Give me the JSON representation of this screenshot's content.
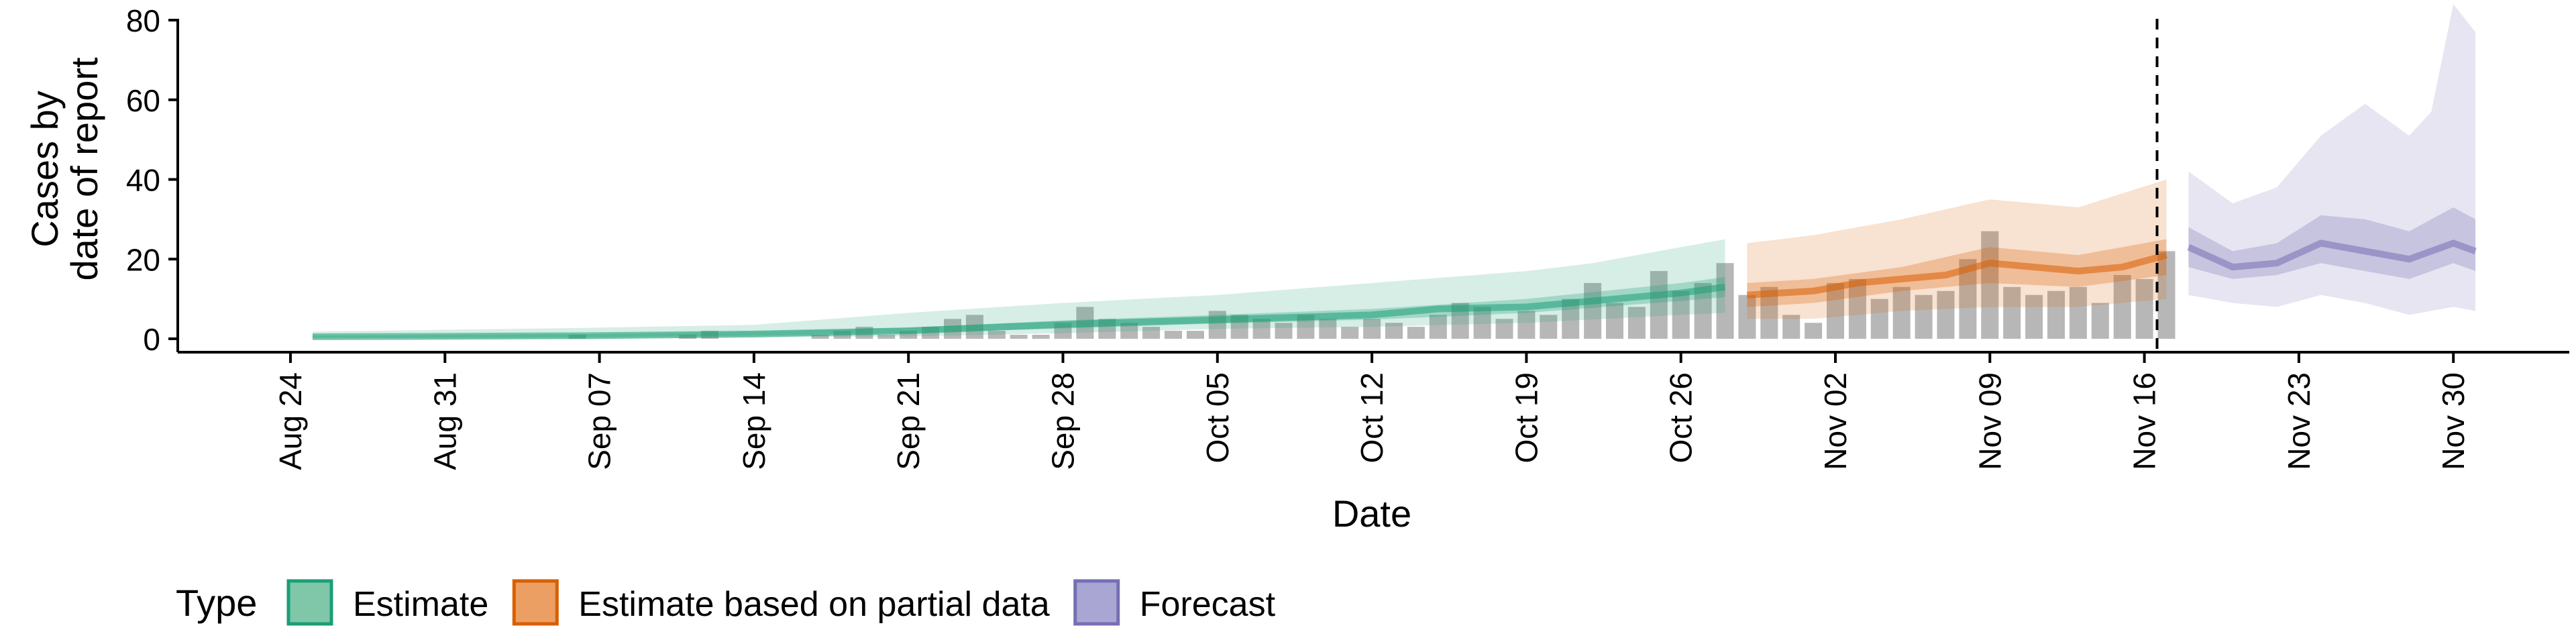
{
  "chart_data": {
    "type": "bar",
    "xlabel": "Date",
    "ylabel_lines": [
      "Cases by",
      "date of report"
    ],
    "ylim": [
      0,
      88
    ],
    "yticks": [
      0,
      20,
      40,
      60,
      80
    ],
    "xticks": [
      "Aug 24",
      "Aug 31",
      "Sep 07",
      "Sep 14",
      "Sep 21",
      "Sep 28",
      "Oct 05",
      "Oct 12",
      "Oct 19",
      "Oct 26",
      "Nov 02",
      "Nov 09",
      "Nov 16",
      "Nov 23",
      "Nov 30"
    ],
    "start_date": "2020-08-24",
    "forecast_date": "2020-11-17",
    "legend": {
      "title": "Type",
      "position": "bottom",
      "items": [
        {
          "label": "Estimate",
          "fill": "#7fc7a8",
          "stroke": "#1b9e77"
        },
        {
          "label": "Estimate based on partial data",
          "fill": "#ec9f62",
          "stroke": "#d95f02"
        },
        {
          "label": "Forecast",
          "fill": "#a9a6d3",
          "stroke": "#7570b3"
        }
      ]
    },
    "colors": {
      "estimate": "#1b9e77",
      "partial": "#d95f02",
      "forecast": "#7570b3",
      "bars": "#999999"
    },
    "reported_cases": [
      [
        "2020-08-24",
        0
      ],
      [
        "2020-08-25",
        0
      ],
      [
        "2020-08-26",
        0
      ],
      [
        "2020-08-27",
        0
      ],
      [
        "2020-08-28",
        0
      ],
      [
        "2020-08-29",
        0
      ],
      [
        "2020-08-30",
        0
      ],
      [
        "2020-08-31",
        0
      ],
      [
        "2020-09-01",
        0
      ],
      [
        "2020-09-02",
        0
      ],
      [
        "2020-09-03",
        0
      ],
      [
        "2020-09-04",
        0
      ],
      [
        "2020-09-05",
        0
      ],
      [
        "2020-09-06",
        1
      ],
      [
        "2020-09-07",
        0
      ],
      [
        "2020-09-08",
        0
      ],
      [
        "2020-09-09",
        0
      ],
      [
        "2020-09-10",
        0
      ],
      [
        "2020-09-11",
        1
      ],
      [
        "2020-09-12",
        2
      ],
      [
        "2020-09-13",
        0
      ],
      [
        "2020-09-14",
        0
      ],
      [
        "2020-09-15",
        0
      ],
      [
        "2020-09-16",
        0
      ],
      [
        "2020-09-17",
        1
      ],
      [
        "2020-09-18",
        2
      ],
      [
        "2020-09-19",
        3
      ],
      [
        "2020-09-20",
        1
      ],
      [
        "2020-09-21",
        2
      ],
      [
        "2020-09-22",
        3
      ],
      [
        "2020-09-23",
        5
      ],
      [
        "2020-09-24",
        6
      ],
      [
        "2020-09-25",
        2
      ],
      [
        "2020-09-26",
        1
      ],
      [
        "2020-09-27",
        1
      ],
      [
        "2020-09-28",
        4
      ],
      [
        "2020-09-29",
        8
      ],
      [
        "2020-09-30",
        5
      ],
      [
        "2020-10-01",
        4
      ],
      [
        "2020-10-02",
        3
      ],
      [
        "2020-10-03",
        2
      ],
      [
        "2020-10-04",
        2
      ],
      [
        "2020-10-05",
        7
      ],
      [
        "2020-10-06",
        6
      ],
      [
        "2020-10-07",
        5
      ],
      [
        "2020-10-08",
        4
      ],
      [
        "2020-10-09",
        6
      ],
      [
        "2020-10-10",
        5
      ],
      [
        "2020-10-11",
        3
      ],
      [
        "2020-10-12",
        5
      ],
      [
        "2020-10-13",
        4
      ],
      [
        "2020-10-14",
        3
      ],
      [
        "2020-10-15",
        6
      ],
      [
        "2020-10-16",
        9
      ],
      [
        "2020-10-17",
        8
      ],
      [
        "2020-10-18",
        5
      ],
      [
        "2020-10-19",
        7
      ],
      [
        "2020-10-20",
        6
      ],
      [
        "2020-10-21",
        10
      ],
      [
        "2020-10-22",
        14
      ],
      [
        "2020-10-23",
        9
      ],
      [
        "2020-10-24",
        8
      ],
      [
        "2020-10-25",
        17
      ],
      [
        "2020-10-26",
        12
      ],
      [
        "2020-10-27",
        14
      ],
      [
        "2020-10-28",
        19
      ],
      [
        "2020-10-29",
        11
      ],
      [
        "2020-10-30",
        13
      ],
      [
        "2020-10-31",
        6
      ],
      [
        "2020-11-01",
        4
      ],
      [
        "2020-11-02",
        14
      ],
      [
        "2020-11-03",
        15
      ],
      [
        "2020-11-04",
        10
      ],
      [
        "2020-11-05",
        13
      ],
      [
        "2020-11-06",
        11
      ],
      [
        "2020-11-07",
        12
      ],
      [
        "2020-11-08",
        20
      ],
      [
        "2020-11-09",
        27
      ],
      [
        "2020-11-10",
        13
      ],
      [
        "2020-11-11",
        11
      ],
      [
        "2020-11-12",
        12
      ],
      [
        "2020-11-13",
        13
      ],
      [
        "2020-11-14",
        9
      ],
      [
        "2020-11-15",
        16
      ],
      [
        "2020-11-16",
        15
      ],
      [
        "2020-11-17",
        22
      ]
    ],
    "estimate_median": [
      [
        "2020-08-25",
        0.5
      ],
      [
        "2020-08-31",
        0.6
      ],
      [
        "2020-09-07",
        0.8
      ],
      [
        "2020-09-14",
        1.2
      ],
      [
        "2020-09-21",
        2.0
      ],
      [
        "2020-09-28",
        3.6
      ],
      [
        "2020-10-05",
        4.8
      ],
      [
        "2020-10-12",
        6.0
      ],
      [
        "2020-10-15",
        7.5
      ],
      [
        "2020-10-19",
        8.0
      ],
      [
        "2020-10-22",
        9.5
      ],
      [
        "2020-10-26",
        11.5
      ],
      [
        "2020-10-28",
        13.0
      ]
    ],
    "estimate_band_50": {
      "lower": [
        [
          "2020-08-25",
          0.2
        ],
        [
          "2020-09-07",
          0.4
        ],
        [
          "2020-09-14",
          0.8
        ],
        [
          "2020-09-21",
          1.4
        ],
        [
          "2020-09-28",
          2.6
        ],
        [
          "2020-10-05",
          3.8
        ],
        [
          "2020-10-12",
          4.8
        ],
        [
          "2020-10-19",
          6.5
        ],
        [
          "2020-10-26",
          9.5
        ],
        [
          "2020-10-28",
          10.5
        ]
      ],
      "upper": [
        [
          "2020-08-25",
          0.8
        ],
        [
          "2020-09-07",
          1.2
        ],
        [
          "2020-09-14",
          1.8
        ],
        [
          "2020-09-21",
          2.8
        ],
        [
          "2020-09-28",
          4.6
        ],
        [
          "2020-10-05",
          6.0
        ],
        [
          "2020-10-12",
          7.5
        ],
        [
          "2020-10-19",
          10.0
        ],
        [
          "2020-10-26",
          14.0
        ],
        [
          "2020-10-28",
          15.5
        ]
      ]
    },
    "estimate_band_90": {
      "lower": [
        [
          "2020-08-25",
          0
        ],
        [
          "2020-09-07",
          0
        ],
        [
          "2020-09-14",
          0.3
        ],
        [
          "2020-09-21",
          0.6
        ],
        [
          "2020-09-28",
          1.4
        ],
        [
          "2020-10-05",
          2.5
        ],
        [
          "2020-10-12",
          3.0
        ],
        [
          "2020-10-19",
          4.0
        ],
        [
          "2020-10-26",
          6.0
        ],
        [
          "2020-10-28",
          6.5
        ]
      ],
      "upper": [
        [
          "2020-08-25",
          1.8
        ],
        [
          "2020-09-07",
          2.8
        ],
        [
          "2020-09-14",
          3.5
        ],
        [
          "2020-09-21",
          6.5
        ],
        [
          "2020-09-28",
          9.0
        ],
        [
          "2020-10-05",
          11.0
        ],
        [
          "2020-10-12",
          14.0
        ],
        [
          "2020-10-19",
          17.0
        ],
        [
          "2020-10-22",
          19.0
        ],
        [
          "2020-10-26",
          23.0
        ],
        [
          "2020-10-28",
          25.0
        ]
      ]
    },
    "partial_median": [
      [
        "2020-10-29",
        11
      ],
      [
        "2020-11-01",
        12
      ],
      [
        "2020-11-03",
        14
      ],
      [
        "2020-11-05",
        15
      ],
      [
        "2020-11-07",
        16
      ],
      [
        "2020-11-09",
        19
      ],
      [
        "2020-11-11",
        18
      ],
      [
        "2020-11-13",
        17
      ],
      [
        "2020-11-15",
        18
      ],
      [
        "2020-11-17",
        21
      ]
    ],
    "partial_band_50": {
      "lower": [
        [
          "2020-10-29",
          8
        ],
        [
          "2020-11-01",
          9
        ],
        [
          "2020-11-05",
          12
        ],
        [
          "2020-11-09",
          14
        ],
        [
          "2020-11-13",
          13
        ],
        [
          "2020-11-17",
          16
        ]
      ],
      "upper": [
        [
          "2020-10-29",
          14
        ],
        [
          "2020-11-01",
          15
        ],
        [
          "2020-11-05",
          18
        ],
        [
          "2020-11-09",
          23
        ],
        [
          "2020-11-13",
          21
        ],
        [
          "2020-11-17",
          25
        ]
      ]
    },
    "partial_band_90": {
      "lower": [
        [
          "2020-10-29",
          5
        ],
        [
          "2020-11-01",
          5
        ],
        [
          "2020-11-05",
          7
        ],
        [
          "2020-11-09",
          8
        ],
        [
          "2020-11-13",
          8
        ],
        [
          "2020-11-17",
          10
        ]
      ],
      "upper": [
        [
          "2020-10-29",
          24
        ],
        [
          "2020-11-01",
          26
        ],
        [
          "2020-11-05",
          30
        ],
        [
          "2020-11-09",
          35
        ],
        [
          "2020-11-13",
          33
        ],
        [
          "2020-11-17",
          40
        ]
      ]
    },
    "forecast_median": [
      [
        "2020-11-18",
        23
      ],
      [
        "2020-11-20",
        18
      ],
      [
        "2020-11-22",
        19
      ],
      [
        "2020-11-24",
        24
      ],
      [
        "2020-11-26",
        22
      ],
      [
        "2020-11-28",
        20
      ],
      [
        "2020-11-30",
        24
      ],
      [
        "2020-12-01",
        22
      ]
    ],
    "forecast_band_50": {
      "lower": [
        [
          "2020-11-18",
          18
        ],
        [
          "2020-11-20",
          15
        ],
        [
          "2020-11-22",
          16
        ],
        [
          "2020-11-24",
          19
        ],
        [
          "2020-11-26",
          17
        ],
        [
          "2020-11-28",
          15
        ],
        [
          "2020-11-30",
          19
        ],
        [
          "2020-12-01",
          17
        ]
      ],
      "upper": [
        [
          "2020-11-18",
          28
        ],
        [
          "2020-11-20",
          22
        ],
        [
          "2020-11-22",
          24
        ],
        [
          "2020-11-24",
          31
        ],
        [
          "2020-11-26",
          30
        ],
        [
          "2020-11-28",
          27
        ],
        [
          "2020-11-30",
          33
        ],
        [
          "2020-12-01",
          30
        ]
      ]
    },
    "forecast_band_90": {
      "lower": [
        [
          "2020-11-18",
          11
        ],
        [
          "2020-11-20",
          9
        ],
        [
          "2020-11-22",
          8
        ],
        [
          "2020-11-24",
          11
        ],
        [
          "2020-11-26",
          9
        ],
        [
          "2020-11-28",
          6
        ],
        [
          "2020-11-30",
          8
        ],
        [
          "2020-12-01",
          7
        ]
      ],
      "upper": [
        [
          "2020-11-18",
          42
        ],
        [
          "2020-11-20",
          34
        ],
        [
          "2020-11-22",
          38
        ],
        [
          "2020-11-24",
          51
        ],
        [
          "2020-11-26",
          59
        ],
        [
          "2020-11-28",
          51
        ],
        [
          "2020-11-29",
          57
        ],
        [
          "2020-11-30",
          84
        ],
        [
          "2020-12-01",
          77
        ]
      ]
    }
  }
}
